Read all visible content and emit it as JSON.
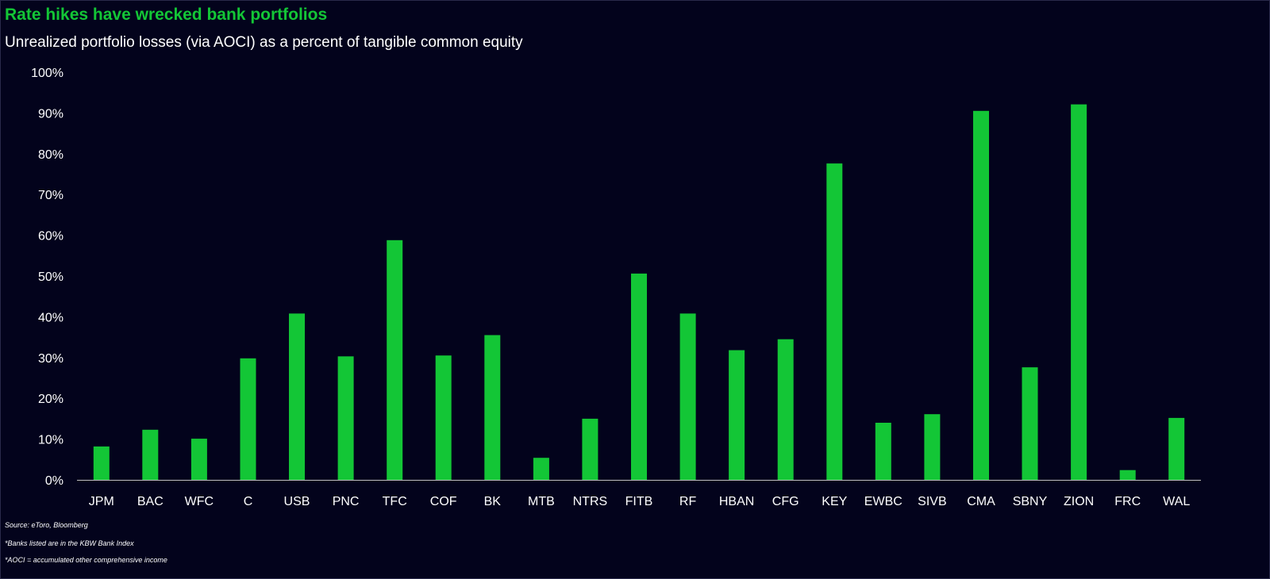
{
  "title": "Rate hikes have wrecked bank portfolios",
  "subtitle": "Unrealized portfolio losses (via AOCI) as a percent of tangible common equity",
  "notes": {
    "source": "Source: eToro, Bloomberg",
    "banks": "*Banks listed are in the KBW Bank Index",
    "aoci": "*AOCI = accumulated other comprehensive income"
  },
  "colors": {
    "background": "#03031c",
    "bar": "#13c636",
    "title": "#13c636",
    "axis": "#bfbfbf",
    "text": "#ffffff"
  },
  "chart_data": {
    "type": "bar",
    "title": "Rate hikes have wrecked bank portfolios",
    "subtitle": "Unrealized portfolio losses (via AOCI) as a percent of tangible common equity",
    "xlabel": "",
    "ylabel": "",
    "ylim": [
      0,
      100
    ],
    "yticks": [
      "0%",
      "10%",
      "20%",
      "30%",
      "40%",
      "50%",
      "60%",
      "70%",
      "80%",
      "90%",
      "100%"
    ],
    "grid": false,
    "legend": "none",
    "categories": [
      "JPM",
      "BAC",
      "WFC",
      "C",
      "USB",
      "PNC",
      "TFC",
      "COF",
      "BK",
      "MTB",
      "NTRS",
      "FITB",
      "RF",
      "HBAN",
      "CFG",
      "KEY",
      "EWBC",
      "SIVB",
      "CMA",
      "SBNY",
      "ZION",
      "FRC",
      "WAL"
    ],
    "values": [
      8.2,
      12.3,
      10.1,
      29.8,
      40.8,
      30.3,
      58.8,
      30.5,
      35.5,
      5.4,
      15.0,
      50.6,
      40.8,
      31.8,
      34.5,
      77.6,
      14.0,
      16.1,
      90.5,
      27.6,
      92.1,
      2.4,
      15.2
    ]
  }
}
